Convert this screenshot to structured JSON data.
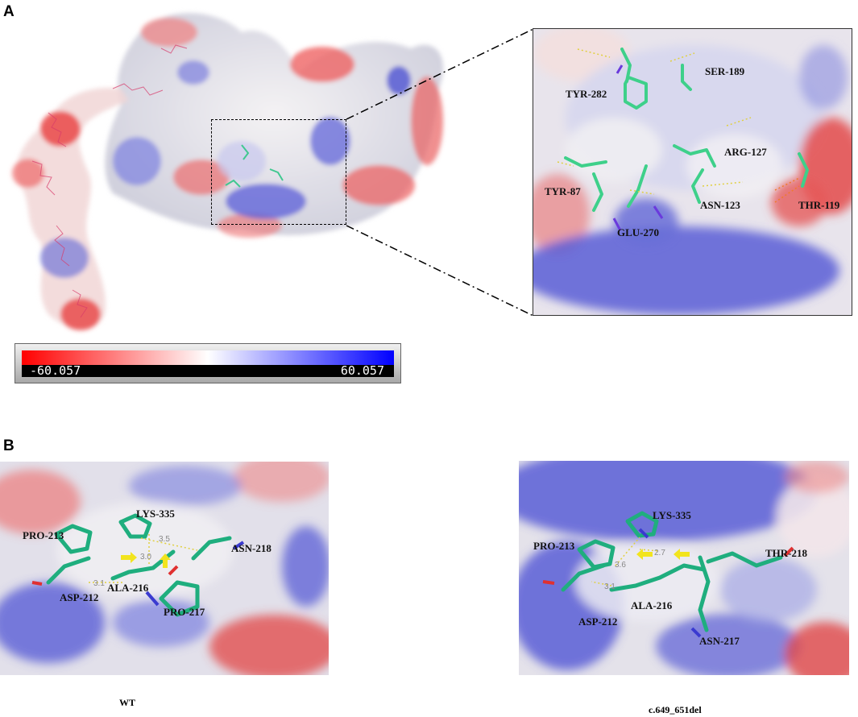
{
  "panels": {
    "a": {
      "letter": "A"
    },
    "b": {
      "letter": "B"
    }
  },
  "colorbar": {
    "min_label": "-60.057",
    "max_label": "60.057",
    "min_value": -60.057,
    "max_value": 60.057,
    "colors": [
      "#ff0000",
      "#ffffff",
      "#0000ff"
    ]
  },
  "zoom_residues": [
    {
      "id": "tyr282",
      "label": "TYR-282"
    },
    {
      "id": "ser189",
      "label": "SER-189"
    },
    {
      "id": "arg127",
      "label": "ARG-127"
    },
    {
      "id": "tyr87",
      "label": "TYR-87"
    },
    {
      "id": "asn123",
      "label": "ASN-123"
    },
    {
      "id": "thr119",
      "label": "THR-119"
    },
    {
      "id": "glu270",
      "label": "GLU-270"
    }
  ],
  "wt": {
    "caption": "WT",
    "residues": [
      {
        "id": "lys335",
        "label": "LYS-335"
      },
      {
        "id": "pro213",
        "label": "PRO-213"
      },
      {
        "id": "asn218",
        "label": "ASN-218"
      },
      {
        "id": "asp212",
        "label": "ASP-212"
      },
      {
        "id": "ala216",
        "label": "ALA-216"
      },
      {
        "id": "pro217",
        "label": "PRO-217"
      }
    ],
    "distances": [
      "3.5",
      "3.0",
      "3.1"
    ]
  },
  "mut": {
    "caption": "c.649_651del",
    "residues": [
      {
        "id": "lys335",
        "label": "LYS-335"
      },
      {
        "id": "pro213",
        "label": "PRO-213"
      },
      {
        "id": "thr218",
        "label": "THR-218"
      },
      {
        "id": "asp212",
        "label": "ASP-212"
      },
      {
        "id": "ala216",
        "label": "ALA-216"
      },
      {
        "id": "asn217",
        "label": "ASN-217"
      }
    ],
    "distances": [
      "2.7",
      "3.6",
      "3.1"
    ]
  }
}
